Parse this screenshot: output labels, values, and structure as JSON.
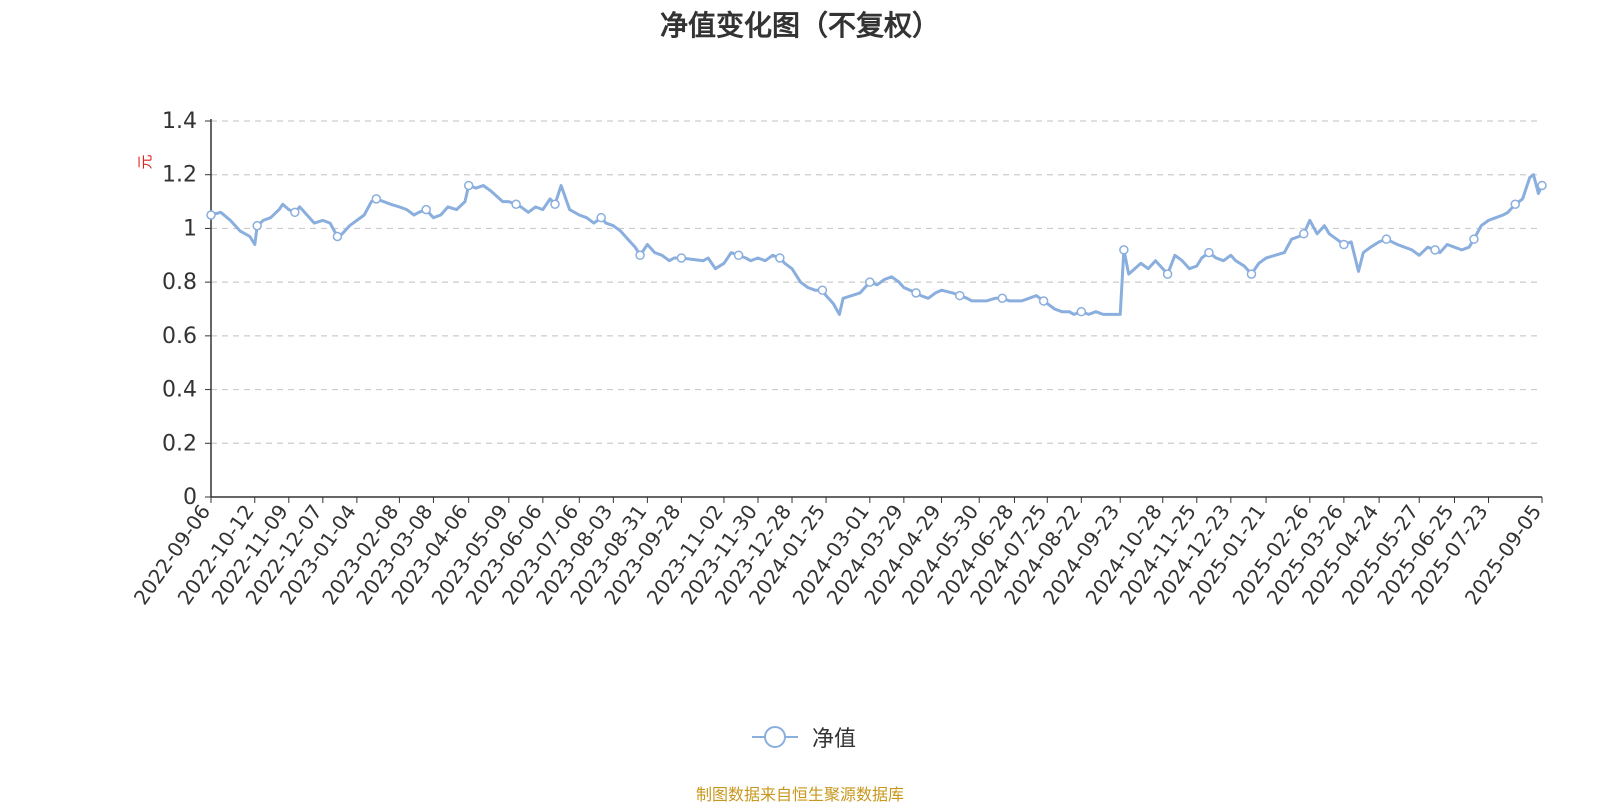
{
  "colors": {
    "line": "#8aaede",
    "axis": "#333333",
    "grid": "#cccccc",
    "unit": "#e02020",
    "source": "#c8971e",
    "text": "#333333"
  },
  "chart_data": {
    "type": "line",
    "title": "净值变化图（不复权）",
    "ylabel": "元",
    "ylim": [
      0,
      1.4
    ],
    "yticks": [
      0,
      0.2,
      0.4,
      0.6,
      0.8,
      1,
      1.2,
      1.4
    ],
    "grid": true,
    "legend_position": "bottom",
    "xticks": [
      "2022-09-06",
      "2022-10-12",
      "2022-11-09",
      "2022-12-07",
      "2023-01-04",
      "2023-02-08",
      "2023-03-08",
      "2023-04-06",
      "2023-05-09",
      "2023-06-06",
      "2023-07-06",
      "2023-08-03",
      "2023-08-31",
      "2023-09-28",
      "2023-11-02",
      "2023-11-30",
      "2023-12-28",
      "2024-01-25",
      "2024-03-01",
      "2024-03-29",
      "2024-04-29",
      "2024-05-30",
      "2024-06-28",
      "2024-07-25",
      "2024-08-22",
      "2024-09-23",
      "2024-10-28",
      "2024-11-25",
      "2024-12-23",
      "2025-01-21",
      "2025-02-26",
      "2025-03-26",
      "2025-04-24",
      "2025-05-27",
      "2025-06-25",
      "2025-07-23",
      "2025-09-05"
    ],
    "series": [
      {
        "name": "净值",
        "x": [
          "2022-09-06",
          "2022-09-14",
          "2022-09-22",
          "2022-09-30",
          "2022-10-08",
          "2022-10-12",
          "2022-10-14",
          "2022-10-19",
          "2022-10-25",
          "2022-11-01",
          "2022-11-04",
          "2022-11-09",
          "2022-11-14",
          "2022-11-18",
          "2022-11-24",
          "2022-11-30",
          "2022-12-07",
          "2022-12-13",
          "2022-12-19",
          "2022-12-23",
          "2022-12-29",
          "2023-01-04",
          "2023-01-10",
          "2023-01-16",
          "2023-01-20",
          "2023-02-01",
          "2023-02-08",
          "2023-02-14",
          "2023-02-20",
          "2023-02-24",
          "2023-03-02",
          "2023-03-08",
          "2023-03-14",
          "2023-03-20",
          "2023-03-27",
          "2023-04-03",
          "2023-04-06",
          "2023-04-12",
          "2023-04-18",
          "2023-04-24",
          "2023-05-04",
          "2023-05-09",
          "2023-05-15",
          "2023-05-19",
          "2023-05-25",
          "2023-05-31",
          "2023-06-06",
          "2023-06-12",
          "2023-06-16",
          "2023-06-21",
          "2023-06-28",
          "2023-07-06",
          "2023-07-12",
          "2023-07-18",
          "2023-07-24",
          "2023-07-28",
          "2023-08-03",
          "2023-08-09",
          "2023-08-15",
          "2023-08-21",
          "2023-08-25",
          "2023-08-31",
          "2023-09-06",
          "2023-09-12",
          "2023-09-18",
          "2023-09-22",
          "2023-09-28",
          "2023-10-16",
          "2023-10-20",
          "2023-10-26",
          "2023-11-02",
          "2023-11-08",
          "2023-11-14",
          "2023-11-20",
          "2023-11-24",
          "2023-11-30",
          "2023-12-06",
          "2023-12-12",
          "2023-12-18",
          "2023-12-22",
          "2023-12-28",
          "2024-01-04",
          "2024-01-10",
          "2024-01-16",
          "2024-01-22",
          "2024-01-25",
          "2024-01-31",
          "2024-02-05",
          "2024-02-08",
          "2024-02-22",
          "2024-03-01",
          "2024-03-07",
          "2024-03-13",
          "2024-03-19",
          "2024-03-25",
          "2024-03-29",
          "2024-04-08",
          "2024-04-12",
          "2024-04-18",
          "2024-04-24",
          "2024-04-29",
          "2024-05-08",
          "2024-05-14",
          "2024-05-20",
          "2024-05-24",
          "2024-05-30",
          "2024-06-05",
          "2024-06-12",
          "2024-06-18",
          "2024-06-24",
          "2024-06-28",
          "2024-07-04",
          "2024-07-10",
          "2024-07-16",
          "2024-07-22",
          "2024-07-25",
          "2024-07-31",
          "2024-08-06",
          "2024-08-12",
          "2024-08-16",
          "2024-08-22",
          "2024-08-28",
          "2024-09-03",
          "2024-09-09",
          "2024-09-13",
          "2024-09-23",
          "2024-09-26",
          "2024-09-30",
          "2024-10-10",
          "2024-10-16",
          "2024-10-22",
          "2024-10-28",
          "2024-11-01",
          "2024-11-07",
          "2024-11-13",
          "2024-11-19",
          "2024-11-25",
          "2024-11-29",
          "2024-12-05",
          "2024-12-11",
          "2024-12-17",
          "2024-12-23",
          "2024-12-27",
          "2025-01-03",
          "2025-01-09",
          "2025-01-15",
          "2025-01-21",
          "2025-02-05",
          "2025-02-11",
          "2025-02-17",
          "2025-02-21",
          "2025-02-26",
          "2025-03-04",
          "2025-03-10",
          "2025-03-14",
          "2025-03-20",
          "2025-03-26",
          "2025-04-01",
          "2025-04-07",
          "2025-04-11",
          "2025-04-17",
          "2025-04-24",
          "2025-04-30",
          "2025-05-09",
          "2025-05-15",
          "2025-05-21",
          "2025-05-27",
          "2025-06-03",
          "2025-06-09",
          "2025-06-13",
          "2025-06-19",
          "2025-06-25",
          "2025-07-01",
          "2025-07-07",
          "2025-07-11",
          "2025-07-17",
          "2025-07-23",
          "2025-07-29",
          "2025-08-04",
          "2025-08-08",
          "2025-08-14",
          "2025-08-20",
          "2025-08-26",
          "2025-08-29",
          "2025-09-02",
          "2025-09-05"
        ],
        "values": [
          1.05,
          1.06,
          1.03,
          0.99,
          0.97,
          0.94,
          1.01,
          1.03,
          1.04,
          1.07,
          1.09,
          1.07,
          1.06,
          1.08,
          1.05,
          1.02,
          1.03,
          1.02,
          0.97,
          0.98,
          1.01,
          1.03,
          1.05,
          1.1,
          1.11,
          1.09,
          1.08,
          1.07,
          1.05,
          1.06,
          1.07,
          1.04,
          1.05,
          1.08,
          1.07,
          1.1,
          1.16,
          1.15,
          1.16,
          1.14,
          1.1,
          1.1,
          1.09,
          1.08,
          1.06,
          1.08,
          1.07,
          1.11,
          1.09,
          1.16,
          1.07,
          1.05,
          1.04,
          1.02,
          1.04,
          1.02,
          1.01,
          0.99,
          0.96,
          0.93,
          0.9,
          0.94,
          0.91,
          0.9,
          0.88,
          0.89,
          0.89,
          0.88,
          0.89,
          0.85,
          0.87,
          0.91,
          0.9,
          0.89,
          0.88,
          0.89,
          0.88,
          0.9,
          0.89,
          0.87,
          0.85,
          0.8,
          0.78,
          0.77,
          0.77,
          0.75,
          0.72,
          0.68,
          0.74,
          0.76,
          0.8,
          0.79,
          0.81,
          0.82,
          0.8,
          0.78,
          0.76,
          0.75,
          0.74,
          0.76,
          0.77,
          0.76,
          0.75,
          0.74,
          0.73,
          0.73,
          0.73,
          0.74,
          0.74,
          0.73,
          0.73,
          0.73,
          0.74,
          0.75,
          0.73,
          0.72,
          0.7,
          0.69,
          0.69,
          0.68,
          0.69,
          0.68,
          0.69,
          0.68,
          0.68,
          0.68,
          0.92,
          0.83,
          0.87,
          0.85,
          0.88,
          0.85,
          0.83,
          0.9,
          0.88,
          0.85,
          0.86,
          0.89,
          0.91,
          0.89,
          0.88,
          0.9,
          0.88,
          0.86,
          0.83,
          0.87,
          0.89,
          0.91,
          0.96,
          0.97,
          0.98,
          1.03,
          0.98,
          1.01,
          0.98,
          0.96,
          0.94,
          0.95,
          0.84,
          0.91,
          0.93,
          0.95,
          0.96,
          0.94,
          0.93,
          0.92,
          0.9,
          0.93,
          0.92,
          0.91,
          0.94,
          0.93,
          0.92,
          0.93,
          0.96,
          1.01,
          1.03,
          1.04,
          1.05,
          1.06,
          1.09,
          1.11,
          1.19,
          1.2,
          1.13,
          1.16
        ]
      }
    ],
    "markers_every": 6,
    "source_note": "制图数据来自恒生聚源数据库"
  }
}
